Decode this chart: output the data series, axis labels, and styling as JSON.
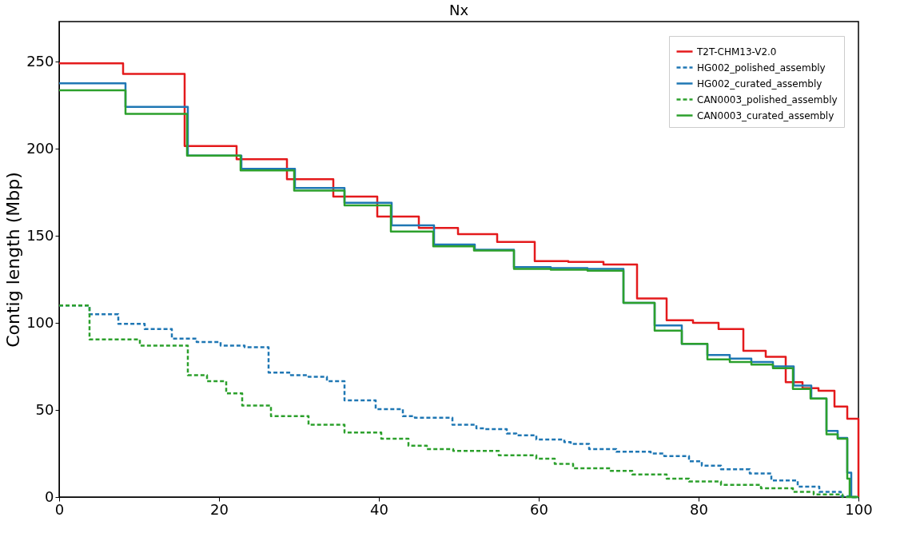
{
  "chart_data": {
    "type": "step",
    "title": "Nx",
    "ylabel": "Contig length (Mbp)",
    "xlim": [
      0,
      100
    ],
    "ylim": [
      0,
      273
    ],
    "xticks": [
      0,
      20,
      40,
      60,
      80,
      100
    ],
    "yticks": [
      0,
      50,
      100,
      150,
      200,
      250
    ],
    "grid": false,
    "legend": "top right",
    "series": [
      {
        "name": "T2T-CHM13-V2.0",
        "color": "#e41a1c",
        "line_style": "solid",
        "x": [
          0,
          8.0,
          15.7,
          22.2,
          28.5,
          34.3,
          39.8,
          45,
          49.9,
          54.8,
          59.5,
          63.7,
          68.1,
          72.3,
          76,
          79.3,
          82.5,
          85.6,
          88.4,
          90.9,
          93,
          95,
          97,
          98.6,
          100
        ],
        "values": [
          249,
          243,
          201.5,
          194,
          182.5,
          172.5,
          161,
          154.5,
          151,
          146.5,
          135.5,
          135,
          133.5,
          114,
          101.5,
          100,
          96.5,
          84,
          80.5,
          66,
          62.5,
          61,
          52,
          45,
          0
        ]
      },
      {
        "name": "HG002_polished_assembly",
        "color": "#1f77b4",
        "line_style": "dashed",
        "x": [
          0,
          3.8,
          7.4,
          10.7,
          14.1,
          17.2,
          20.2,
          23.2,
          26.2,
          29,
          31.2,
          33.5,
          35.7,
          39.6,
          43,
          44.5,
          49.2,
          52.2,
          53.3,
          56,
          57.2,
          59.7,
          63.2,
          64,
          66.3,
          69.7,
          74,
          75.7,
          78.8,
          80.4,
          82.8,
          86.4,
          89.1,
          92.4,
          95.1,
          97.8,
          99,
          100
        ],
        "values": [
          110,
          105,
          99.5,
          96.5,
          91,
          89,
          87,
          86,
          71.5,
          70,
          69,
          66.5,
          55.5,
          50.5,
          46.5,
          45.5,
          41.5,
          39.5,
          39,
          36.5,
          35.5,
          33,
          31.5,
          30.5,
          27.5,
          26,
          25,
          23.5,
          20.5,
          18,
          16,
          13.5,
          9.5,
          6,
          3,
          0.5,
          0,
          0
        ]
      },
      {
        "name": "HG002_curated_assembly",
        "color": "#1f77b4",
        "line_style": "solid",
        "x": [
          0,
          8.3,
          16.1,
          22.8,
          29.5,
          35.7,
          41.6,
          46.9,
          52,
          56.9,
          61.5,
          66.1,
          70.6,
          74.5,
          77.9,
          81.1,
          83.9,
          86.6,
          89.3,
          91.9,
          94.1,
          96,
          97.4,
          98.6,
          99.1,
          100
        ],
        "values": [
          237.5,
          224,
          196,
          188.5,
          177.5,
          169,
          156,
          145,
          142,
          132,
          131.5,
          131,
          111.5,
          98.5,
          88,
          81.5,
          79.5,
          77.5,
          75,
          64,
          56.5,
          38,
          34,
          14,
          0,
          0
        ]
      },
      {
        "name": "CAN0003_polished_assembly",
        "color": "#2ca02c",
        "line_style": "dashed",
        "x": [
          0,
          3.8,
          10.1,
          16.1,
          18.5,
          20.9,
          22.9,
          26.5,
          31.2,
          35.7,
          40.3,
          43.7,
          46,
          49.3,
          55,
          59.7,
          62,
          64.3,
          69,
          71.7,
          76,
          78.8,
          82.8,
          87.8,
          91.8,
          94.4,
          98,
          100
        ],
        "values": [
          110,
          90.5,
          87,
          70,
          66.5,
          59.5,
          52.5,
          46.5,
          41.5,
          37,
          33.5,
          29.5,
          27.5,
          26.5,
          24,
          22,
          19,
          16.5,
          15,
          13,
          10.5,
          9,
          7,
          5,
          3,
          1.5,
          0,
          0
        ]
      },
      {
        "name": "CAN0003_curated_assembly",
        "color": "#2ca02c",
        "line_style": "solid",
        "x": [
          0,
          8.3,
          16,
          22.7,
          29.4,
          35.7,
          41.5,
          46.8,
          51.9,
          56.9,
          61.5,
          66.1,
          70.6,
          74.5,
          77.9,
          81.1,
          83.9,
          86.6,
          89.3,
          91.8,
          94,
          96,
          97.4,
          98.6,
          98.9,
          100
        ],
        "values": [
          233.5,
          220,
          196,
          187.5,
          176,
          167.5,
          152.5,
          144,
          141.5,
          131,
          130.5,
          130,
          111.5,
          95.5,
          88,
          79,
          77.5,
          76,
          74,
          62,
          56.5,
          36,
          33.5,
          10.5,
          0,
          0
        ]
      }
    ]
  }
}
